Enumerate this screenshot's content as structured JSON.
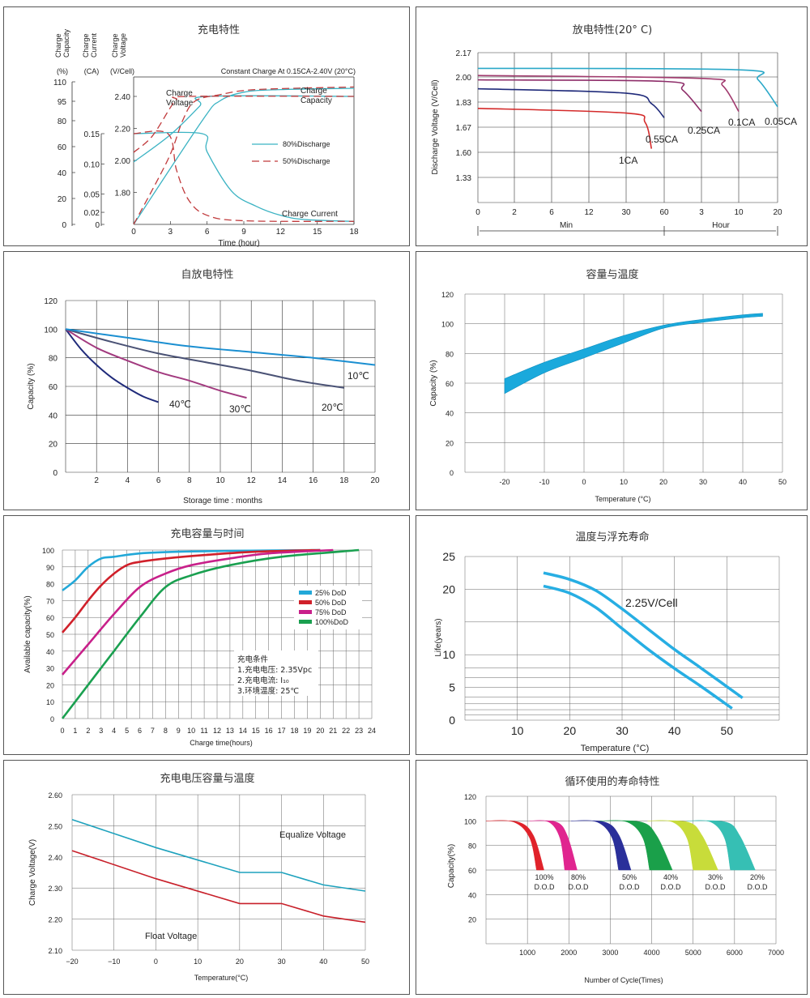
{
  "charts": {
    "c1": {
      "title": "充电特性",
      "y_headers": [
        "Charge\nCapacity",
        "Charge\nCurrent",
        "Charge\nVoltage"
      ],
      "y_units": [
        "(%)",
        "(CA)",
        "(V/Cell)"
      ],
      "condition": "Constant Charge At 0.15CA-2.40V  (20°C)",
      "xlabel": "Time (hour)",
      "labels": {
        "voltage": "Charge\nVoltage",
        "capacity": "Charge\nCapacity",
        "current": "Charge Current"
      },
      "legend": [
        "80%Discharge",
        "50%Discharge"
      ]
    },
    "c2": {
      "title": "放电特性(20° C)",
      "ylabel": "Discharge Voltage (V/Cell)",
      "xlabels": [
        "Min",
        "Hour"
      ],
      "series_labels": [
        "1CA",
        "0.55CA",
        "0.25CA",
        "0.1CA",
        "0.05CA"
      ]
    },
    "c3": {
      "title": "自放电特性",
      "ylabel": "Capacity (%)",
      "xlabel": "Storage time : months",
      "series_labels": [
        "40℃",
        "30℃",
        "20℃",
        "10℃"
      ]
    },
    "c4": {
      "title": "容量与温度",
      "ylabel": "Capacity (%)",
      "xlabel": "Temperature (°C)"
    },
    "c5": {
      "title": "充电容量与时间",
      "ylabel": "Available capacity(%)",
      "xlabel": "Charge time(hours)",
      "legend": [
        "25%  DoD",
        "50%  DoD",
        "75%  DoD",
        "100%DoD"
      ],
      "conditions": [
        "充电条件",
        "1.充电电压:  2.35Vpc",
        "2.充电电流:  I₁₀",
        "3.环境温度:  25℃"
      ]
    },
    "c6": {
      "title": "温度与浮充寿命",
      "ylabel": "Life(years)",
      "xlabel": "Temperature (°C)",
      "series_label": "2.25V/Cell"
    },
    "c7": {
      "title": "充电电压容量与温度",
      "ylabel": "Charge Voltage(V)",
      "xlabel": "Temperature(°C)",
      "series_labels": [
        "Equalize Voltage",
        "Float Voltage"
      ]
    },
    "c8": {
      "title": "循环使用的寿命特性",
      "ylabel": "Capacity(%)",
      "xlabel": "Number of Cycle(Times)",
      "band_labels": [
        [
          "100%",
          "D.O.D"
        ],
        [
          "80%",
          "D.O.D"
        ],
        [
          "50%",
          "D.O.D"
        ],
        [
          "40%",
          "D.O.D"
        ],
        [
          "30%",
          "D.O.D"
        ],
        [
          "20%",
          "D.O.D"
        ]
      ]
    }
  },
  "chart_data": [
    {
      "type": "line",
      "title": "充电特性",
      "xlabel": "Time (hour)",
      "xlim": [
        0,
        18
      ],
      "xticks": [
        0,
        3,
        6,
        9,
        12,
        15,
        18
      ],
      "y_axes": {
        "capacity_pct": {
          "ticks": [
            0,
            20,
            40,
            60,
            80,
            95,
            110
          ]
        },
        "current_CA": {
          "ticks": [
            0,
            0.02,
            0.05,
            0.1,
            0.15
          ]
        },
        "voltage_V": {
          "ticks": [
            1.8,
            2.0,
            2.2,
            2.4
          ]
        }
      },
      "series": [
        {
          "name": "80%Discharge",
          "style": "solid",
          "color": "#3bb3c3",
          "curves": {
            "voltage_V": [
              [
                0,
                1.99
              ],
              [
                3,
                2.16
              ],
              [
                5.4,
                2.34
              ],
              [
                6,
                2.4
              ],
              [
                18,
                2.4
              ]
            ],
            "current_CA": [
              [
                0,
                0.15
              ],
              [
                5.6,
                0.15
              ],
              [
                6,
                0.12
              ],
              [
                8,
                0.055
              ],
              [
                10,
                0.03
              ],
              [
                12,
                0.015
              ],
              [
                14,
                0.008
              ],
              [
                18,
                0.005
              ]
            ],
            "capacity_pct": [
              [
                0,
                0
              ],
              [
                5.6,
                80
              ],
              [
                7,
                95
              ],
              [
                9,
                102
              ],
              [
                12,
                104
              ],
              [
                18,
                105
              ]
            ]
          }
        },
        {
          "name": "50%Discharge",
          "style": "dashed",
          "color": "#c0393b",
          "curves": {
            "voltage_V": [
              [
                0,
                2.05
              ],
              [
                1.5,
                2.15
              ],
              [
                3,
                2.33
              ],
              [
                3.5,
                2.38
              ],
              [
                4.5,
                2.4
              ],
              [
                18,
                2.4
              ]
            ],
            "current_CA": [
              [
                0,
                0.15
              ],
              [
                2.8,
                0.15
              ],
              [
                3.5,
                0.09
              ],
              [
                4.5,
                0.04
              ],
              [
                6,
                0.015
              ],
              [
                9,
                0.006
              ],
              [
                18,
                0.005
              ]
            ],
            "capacity_pct": [
              [
                0,
                0
              ],
              [
                2.8,
                50
              ],
              [
                4,
                80
              ],
              [
                5,
                95
              ],
              [
                7,
                100
              ],
              [
                10,
                104
              ],
              [
                18,
                106
              ]
            ]
          }
        }
      ]
    },
    {
      "type": "line",
      "title": "放电特性(20° C)",
      "ylabel": "Discharge Voltage (V/Cell)",
      "yticks": [
        1.33,
        1.6,
        1.67,
        1.83,
        2.0,
        2.17
      ],
      "x_segments": [
        {
          "unit": "Min",
          "ticks": [
            0,
            2,
            6,
            12,
            30,
            60
          ]
        },
        {
          "unit": "Hour",
          "ticks": [
            3,
            10,
            20
          ]
        }
      ],
      "series": [
        {
          "name": "1CA",
          "color": "#d42a2a",
          "points": [
            [
              "0min",
              1.79
            ],
            [
              "30min",
              1.76
            ],
            [
              "45min",
              1.7
            ],
            [
              "50min",
              1.61
            ]
          ]
        },
        {
          "name": "0.55CA",
          "color": "#1f2a7a",
          "points": [
            [
              "0min",
              1.92
            ],
            [
              "30min",
              1.89
            ],
            [
              "50min",
              1.82
            ],
            [
              "60min",
              1.73
            ]
          ]
        },
        {
          "name": "0.25CA",
          "color": "#8e2e6a",
          "points": [
            [
              "0min",
              1.98
            ],
            [
              "60min",
              1.97
            ],
            [
              "2h",
              1.91
            ],
            [
              "3h",
              1.77
            ]
          ]
        },
        {
          "name": "0.1CA",
          "color": "#a13a6e",
          "points": [
            [
              "0min",
              2.01
            ],
            [
              "3h",
              1.99
            ],
            [
              "7h",
              1.94
            ],
            [
              "10h",
              1.77
            ]
          ]
        },
        {
          "name": "0.05CA",
          "color": "#2aa8c8",
          "points": [
            [
              "0min",
              2.06
            ],
            [
              "10h",
              2.05
            ],
            [
              "15h",
              1.98
            ],
            [
              "20h",
              1.8
            ]
          ]
        }
      ]
    },
    {
      "type": "line",
      "title": "自放电特性",
      "xlabel": "Storage time : months",
      "ylabel": "Capacity (%)",
      "xlim": [
        0,
        20
      ],
      "ylim": [
        0,
        120
      ],
      "xticks": [
        2,
        4,
        6,
        8,
        10,
        12,
        14,
        16,
        18,
        20
      ],
      "yticks": [
        0,
        20,
        40,
        60,
        80,
        100,
        120
      ],
      "series": [
        {
          "name": "40℃",
          "color": "#1f2a7a",
          "x": [
            0,
            1,
            2,
            3,
            4,
            5,
            6
          ],
          "y": [
            100,
            86,
            75,
            66,
            59,
            53,
            49
          ]
        },
        {
          "name": "30℃",
          "color": "#a23a7f",
          "x": [
            0,
            2,
            4,
            6,
            8,
            10,
            11.7
          ],
          "y": [
            100,
            87,
            78,
            70,
            64,
            57,
            52
          ]
        },
        {
          "name": "20℃",
          "color": "#4a5275",
          "x": [
            0,
            3,
            6,
            9,
            12,
            15,
            18
          ],
          "y": [
            100,
            91,
            83,
            77,
            71,
            64,
            59
          ]
        },
        {
          "name": "10℃",
          "color": "#1b8fd1",
          "x": [
            0,
            4,
            8,
            12,
            16,
            20
          ],
          "y": [
            100,
            94,
            88,
            84,
            80,
            75
          ]
        }
      ]
    },
    {
      "type": "area",
      "title": "容量与温度",
      "xlabel": "Temperature (°C)",
      "ylabel": "Capacity (%)",
      "xlim": [
        -30,
        50
      ],
      "ylim": [
        0,
        120
      ],
      "xticks": [
        -20,
        -10,
        0,
        10,
        20,
        30,
        40,
        50
      ],
      "yticks": [
        0,
        20,
        40,
        60,
        80,
        100,
        120
      ],
      "color": "#1aa9dc",
      "band": {
        "x": [
          -20,
          -10,
          0,
          10,
          20,
          30,
          40,
          45
        ],
        "upper": [
          63,
          74,
          83,
          92,
          99,
          103,
          106,
          107
        ],
        "lower": [
          53,
          67,
          77,
          87,
          97,
          101,
          104,
          105
        ]
      }
    },
    {
      "type": "line",
      "title": "充电容量与时间",
      "xlabel": "Charge time(hours)",
      "ylabel": "Available capacity(%)",
      "xlim": [
        0,
        24
      ],
      "ylim": [
        0,
        100
      ],
      "xticks": [
        0,
        1,
        2,
        3,
        4,
        5,
        6,
        7,
        8,
        9,
        10,
        11,
        12,
        13,
        14,
        15,
        16,
        17,
        18,
        19,
        20,
        21,
        22,
        23,
        24
      ],
      "yticks": [
        0,
        10,
        20,
        30,
        40,
        50,
        60,
        70,
        80,
        90,
        100
      ],
      "series": [
        {
          "name": "25%  DoD",
          "color": "#22a8d8",
          "x": [
            0,
            1,
            2,
            3,
            4,
            6,
            9,
            13,
            20
          ],
          "y": [
            76,
            82,
            90,
            95,
            96,
            98,
            99,
            99.5,
            100
          ]
        },
        {
          "name": "50%  DoD",
          "color": "#d0202a",
          "x": [
            0,
            1,
            2,
            3,
            4,
            5,
            6,
            8,
            11,
            15,
            20
          ],
          "y": [
            51,
            60,
            70,
            79,
            86,
            91,
            93,
            95,
            97,
            99,
            100
          ]
        },
        {
          "name": "75%  DoD",
          "color": "#c8208a",
          "x": [
            0,
            2,
            4,
            6,
            8,
            10,
            13,
            16,
            21
          ],
          "y": [
            26,
            44,
            62,
            78,
            86,
            91,
            95,
            98,
            100
          ]
        },
        {
          "name": "100%DoD",
          "color": "#1aa050",
          "x": [
            0,
            2,
            4,
            6,
            8,
            10,
            13,
            17,
            23
          ],
          "y": [
            0,
            20,
            40,
            60,
            78,
            85,
            91,
            96,
            100
          ]
        }
      ]
    },
    {
      "type": "area",
      "title": "温度与浮充寿命",
      "xlabel": "Temperature (°C)",
      "ylabel": "Life(years)",
      "series_name": "2.25V/Cell",
      "xlim": [
        0,
        60
      ],
      "ylim": [
        0,
        25
      ],
      "xticks": [
        10,
        20,
        30,
        40,
        50
      ],
      "yticks": [
        0,
        5,
        10,
        20,
        25
      ],
      "color": "#27aee3",
      "upper": {
        "x": [
          15,
          20,
          25,
          30,
          35,
          40,
          45,
          53
        ],
        "y": [
          22.5,
          21.5,
          19.8,
          17,
          13.9,
          10.8,
          8,
          3.4
        ]
      },
      "lower": {
        "x": [
          15,
          20,
          25,
          30,
          35,
          40,
          45,
          51
        ],
        "y": [
          20.5,
          19.4,
          17.2,
          14,
          10.8,
          7.9,
          5.2,
          1.8
        ]
      }
    },
    {
      "type": "line",
      "title": "充电电压容量与温度",
      "xlabel": "Temperature(°C)",
      "ylabel": "Charge Voltage(V)",
      "xlim": [
        -20,
        50
      ],
      "ylim": [
        2.1,
        2.6
      ],
      "xticks": [
        -20,
        -10,
        0,
        10,
        20,
        30,
        40,
        50
      ],
      "yticks": [
        2.1,
        2.2,
        2.3,
        2.4,
        2.5,
        2.6
      ],
      "series": [
        {
          "name": "Equalize Voltage",
          "color": "#1ea2bd",
          "x": [
            -20,
            0,
            20,
            30,
            40,
            50
          ],
          "y": [
            2.52,
            2.43,
            2.35,
            2.35,
            2.31,
            2.29
          ]
        },
        {
          "name": "Float Voltage",
          "color": "#c8202a",
          "x": [
            -20,
            0,
            20,
            30,
            40,
            50
          ],
          "y": [
            2.42,
            2.33,
            2.25,
            2.25,
            2.21,
            2.19
          ]
        }
      ]
    },
    {
      "type": "area",
      "title": "循环使用的寿命特性",
      "xlabel": "Number of Cycle(Times)",
      "ylabel": "Capacity(%)",
      "xlim": [
        0,
        7000
      ],
      "ylim": [
        0,
        120
      ],
      "xticks": [
        1000,
        2000,
        3000,
        4000,
        5000,
        6000,
        7000
      ],
      "yticks": [
        20,
        40,
        60,
        80,
        100,
        120
      ],
      "series": [
        {
          "name": "100% D.O.D",
          "color": "#e0222a",
          "upper_end": 1400,
          "lower_end": 1220
        },
        {
          "name": "80% D.O.D",
          "color": "#e0258f",
          "upper_end": 2200,
          "lower_end": 1900
        },
        {
          "name": "50% D.O.D",
          "color": "#2a2f9a",
          "upper_end": 3500,
          "lower_end": 3200
        },
        {
          "name": "40% D.O.D",
          "color": "#1aa04a",
          "upper_end": 4500,
          "lower_end": 3950
        },
        {
          "name": "30% D.O.D",
          "color": "#c8dc3a",
          "upper_end": 5600,
          "lower_end": 5000
        },
        {
          "name": "20% D.O.D",
          "color": "#36bfb4",
          "upper_end": 6500,
          "lower_end": 5900
        }
      ]
    }
  ]
}
